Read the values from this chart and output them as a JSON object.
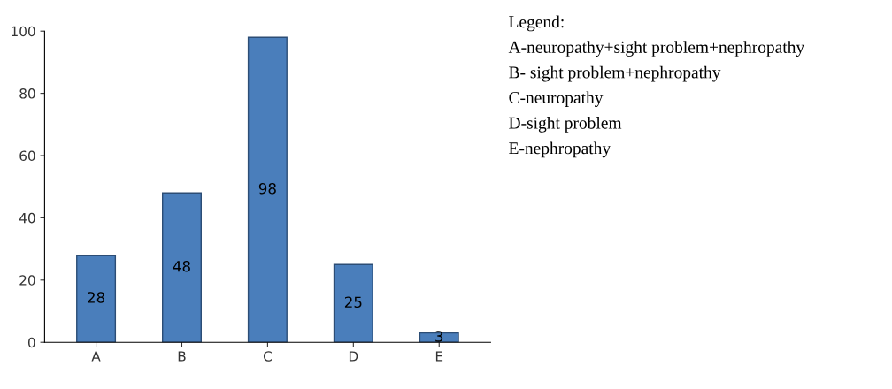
{
  "chart_data": {
    "type": "bar",
    "categories": [
      "A",
      "B",
      "C",
      "D",
      "E"
    ],
    "values": [
      28,
      48,
      98,
      25,
      3
    ],
    "color": "#4a7ebb",
    "ylim": [
      0,
      100
    ],
    "yticks": [
      0,
      20,
      40,
      60,
      80,
      100
    ],
    "data_labels": true,
    "annotations": [
      "Legend:",
      "A-neuropathy+sight problem+nephropathy",
      "B- sight problem+nephropathy",
      "C-neuropathy",
      "D-sight problem",
      "E-nephropathy"
    ]
  }
}
